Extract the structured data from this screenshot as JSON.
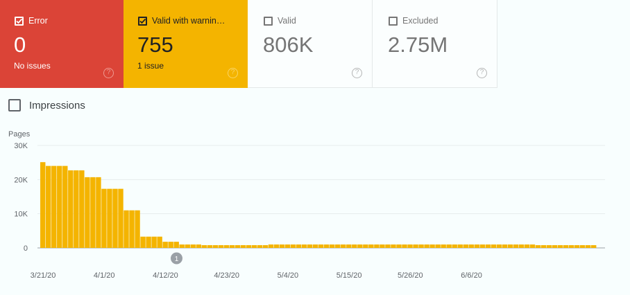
{
  "cards": [
    {
      "label": "Error",
      "value": "0",
      "sub": "No issues",
      "checked": true,
      "color": "#db4437"
    },
    {
      "label": "Valid with warnin…",
      "value": "755",
      "sub": "1 issue",
      "checked": true,
      "color": "#f4b400"
    },
    {
      "label": "Valid",
      "value": "806K",
      "sub": "",
      "checked": false,
      "color": "#ffffff"
    },
    {
      "label": "Excluded",
      "value": "2.75M",
      "sub": "",
      "checked": false,
      "color": "#ffffff"
    }
  ],
  "help_icon": "?",
  "impressions": {
    "label": "Impressions",
    "checked": false
  },
  "chart_data": {
    "type": "bar",
    "title": "",
    "ylabel": "Pages",
    "ylim": [
      0,
      30000
    ],
    "yticks": [
      "0",
      "10K",
      "20K",
      "30K"
    ],
    "xtick_labels": [
      "3/21/20",
      "4/1/20",
      "4/12/20",
      "4/23/20",
      "5/4/20",
      "5/15/20",
      "5/26/20",
      "6/6/20"
    ],
    "color": "#f4b400",
    "annotation": {
      "label": "1",
      "date": "4/14/20"
    },
    "series": [
      {
        "values": [
          25100,
          24000,
          24000,
          24000,
          24000,
          22700,
          22700,
          22700,
          20700,
          20700,
          20700,
          17300,
          17300,
          17300,
          17300,
          11000,
          11000,
          11000,
          3300,
          3300,
          3300,
          3300,
          1800,
          1800,
          1800,
          1000,
          1000,
          1000,
          1000,
          800,
          800,
          800,
          800,
          800,
          800,
          800,
          800,
          800,
          800,
          800,
          800,
          1000,
          1000,
          1000,
          1000,
          1000,
          1000,
          1000,
          1000,
          1000,
          1000,
          1000,
          1000,
          1000,
          1000,
          1000,
          1000,
          1000,
          1000,
          1000,
          1000,
          1000,
          1000,
          1000,
          1000,
          1000,
          1000,
          1000,
          1000,
          1000,
          1000,
          1000,
          1000,
          1000,
          1000,
          1000,
          1000,
          1000,
          1000,
          1000,
          1000,
          1000,
          1000,
          1000,
          1000,
          1000,
          1000,
          1000,
          1000,
          800,
          800,
          800,
          800,
          800,
          800,
          800,
          800,
          800,
          800,
          800
        ]
      }
    ]
  }
}
